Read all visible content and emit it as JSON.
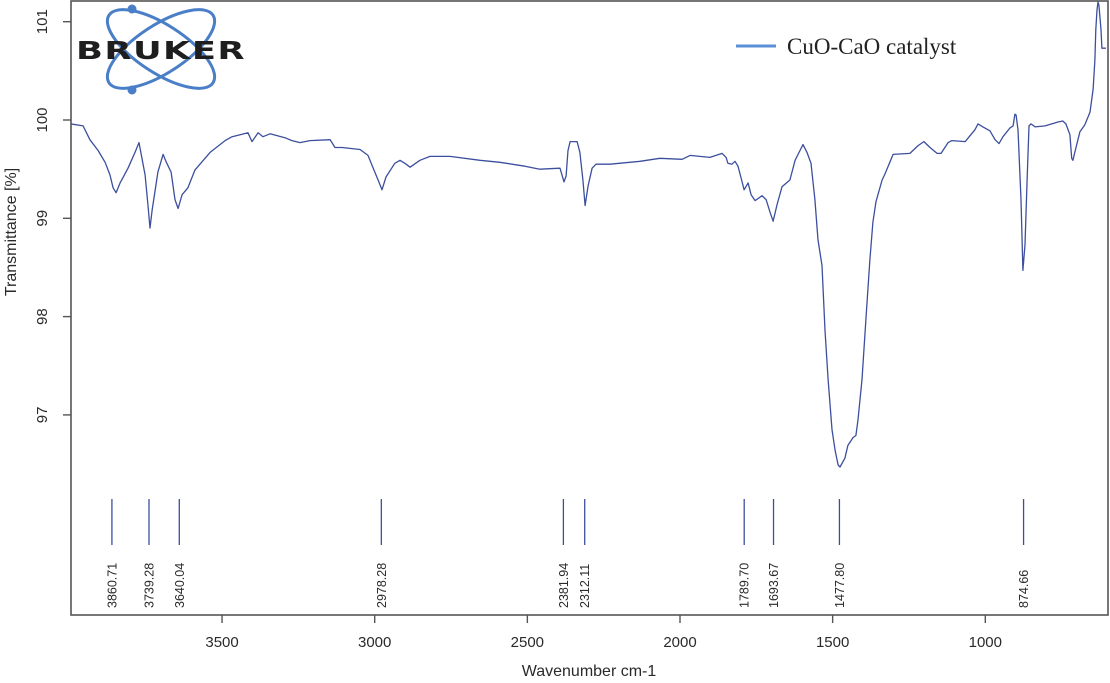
{
  "chart_data": {
    "type": "line",
    "title": "",
    "xlabel": "Wavenumber cm-1",
    "ylabel": "Transmittance [%]",
    "xlim": [
      4000,
      600
    ],
    "ylim": [
      95.05,
      101.2
    ],
    "x_reversed": true,
    "x_ticks": [
      3500,
      3000,
      2500,
      2000,
      1500,
      1000
    ],
    "y_ticks": [
      97,
      98,
      99,
      100,
      101
    ],
    "grid": false,
    "legend_position": "upper right",
    "series": [
      {
        "name": "CuO-CaO catalyst",
        "color": "#3c4f9e",
        "legend_color": "#5b8fd6",
        "x": [
          3995,
          3955,
          3933,
          3906,
          3883,
          3867,
          3857,
          3847,
          3834,
          3808,
          3785,
          3772,
          3752,
          3743,
          3736,
          3729,
          3710,
          3693,
          3684,
          3667,
          3654,
          3644,
          3631,
          3612,
          3589,
          3539,
          3490,
          3467,
          3441,
          3415,
          3402,
          3382,
          3366,
          3343,
          3294,
          3271,
          3245,
          3212,
          3146,
          3130,
          3107,
          3048,
          3022,
          3009,
          2989,
          2976,
          2963,
          2934,
          2917,
          2901,
          2884,
          2852,
          2819,
          2753,
          2655,
          2590,
          2508,
          2459,
          2393,
          2380,
          2373,
          2367,
          2360,
          2337,
          2328,
          2318,
          2311,
          2301,
          2288,
          2275,
          2229,
          2131,
          2066,
          1993,
          1967,
          1902,
          1862,
          1849,
          1843,
          1830,
          1820,
          1810,
          1800,
          1790,
          1777,
          1767,
          1754,
          1731,
          1718,
          1705,
          1695,
          1682,
          1666,
          1640,
          1623,
          1607,
          1597,
          1584,
          1571,
          1558,
          1548,
          1535,
          1525,
          1515,
          1502,
          1492,
          1482,
          1476,
          1460,
          1450,
          1433,
          1424,
          1417,
          1404,
          1391,
          1378,
          1368,
          1358,
          1338,
          1329,
          1302,
          1247,
          1220,
          1201,
          1181,
          1158,
          1145,
          1122,
          1109,
          1066,
          1034,
          1024,
          1008,
          985,
          968,
          955,
          942,
          919,
          909,
          903,
          899,
          893,
          883,
          877,
          870,
          863,
          857,
          850,
          837,
          804,
          762,
          746,
          736,
          723,
          717,
          713,
          703,
          690,
          674,
          657,
          647,
          641,
          638,
          634,
          631,
          628,
          621,
          618,
          605
        ],
        "y": [
          99.96,
          99.94,
          99.8,
          99.69,
          99.57,
          99.44,
          99.31,
          99.26,
          99.36,
          99.51,
          99.67,
          99.77,
          99.44,
          99.14,
          98.9,
          99.08,
          99.47,
          99.65,
          99.58,
          99.47,
          99.19,
          99.1,
          99.24,
          99.31,
          99.49,
          99.67,
          99.79,
          99.83,
          99.85,
          99.87,
          99.78,
          99.87,
          99.83,
          99.86,
          99.82,
          99.79,
          99.77,
          99.79,
          99.8,
          99.72,
          99.72,
          99.7,
          99.64,
          99.54,
          99.39,
          99.29,
          99.42,
          99.56,
          99.59,
          99.56,
          99.52,
          99.59,
          99.63,
          99.63,
          99.59,
          99.57,
          99.53,
          99.5,
          99.51,
          99.37,
          99.43,
          99.69,
          99.78,
          99.78,
          99.67,
          99.39,
          99.13,
          99.33,
          99.51,
          99.55,
          99.55,
          99.58,
          99.61,
          99.6,
          99.64,
          99.62,
          99.66,
          99.62,
          99.56,
          99.55,
          99.58,
          99.53,
          99.41,
          99.29,
          99.36,
          99.24,
          99.18,
          99.23,
          99.19,
          99.06,
          98.97,
          99.14,
          99.32,
          99.39,
          99.59,
          99.69,
          99.75,
          99.67,
          99.56,
          99.19,
          98.78,
          98.52,
          97.86,
          97.36,
          96.85,
          96.64,
          96.49,
          96.47,
          96.56,
          96.69,
          96.77,
          96.79,
          96.95,
          97.36,
          97.97,
          98.58,
          98.96,
          99.17,
          99.39,
          99.45,
          99.65,
          99.66,
          99.74,
          99.78,
          99.72,
          99.66,
          99.66,
          99.77,
          99.79,
          99.78,
          99.9,
          99.96,
          99.93,
          99.89,
          99.8,
          99.76,
          99.83,
          99.92,
          99.94,
          100.06,
          100.05,
          99.9,
          99.19,
          98.47,
          98.73,
          99.39,
          99.94,
          99.96,
          99.93,
          99.94,
          99.98,
          99.99,
          99.96,
          99.85,
          99.61,
          99.59,
          99.72,
          99.88,
          99.95,
          100.08,
          100.31,
          100.61,
          100.92,
          101.12,
          101.2,
          101.17,
          100.92,
          100.73,
          100.73
        ]
      }
    ],
    "peak_annotations": [
      "3860.71",
      "3739.28",
      "3640.04",
      "2978.28",
      "2381.94",
      "2312.11",
      "1789.70",
      "1693.67",
      "1477.80",
      "874.66"
    ],
    "annotations": [
      "BRUKER logo (top left)"
    ]
  },
  "logo": {
    "text": "BRUKER"
  },
  "legend": {
    "label": "CuO-CaO catalyst"
  },
  "axes": {
    "xlabel": "Wavenumber cm-1",
    "ylabel": "Transmittance [%]"
  }
}
